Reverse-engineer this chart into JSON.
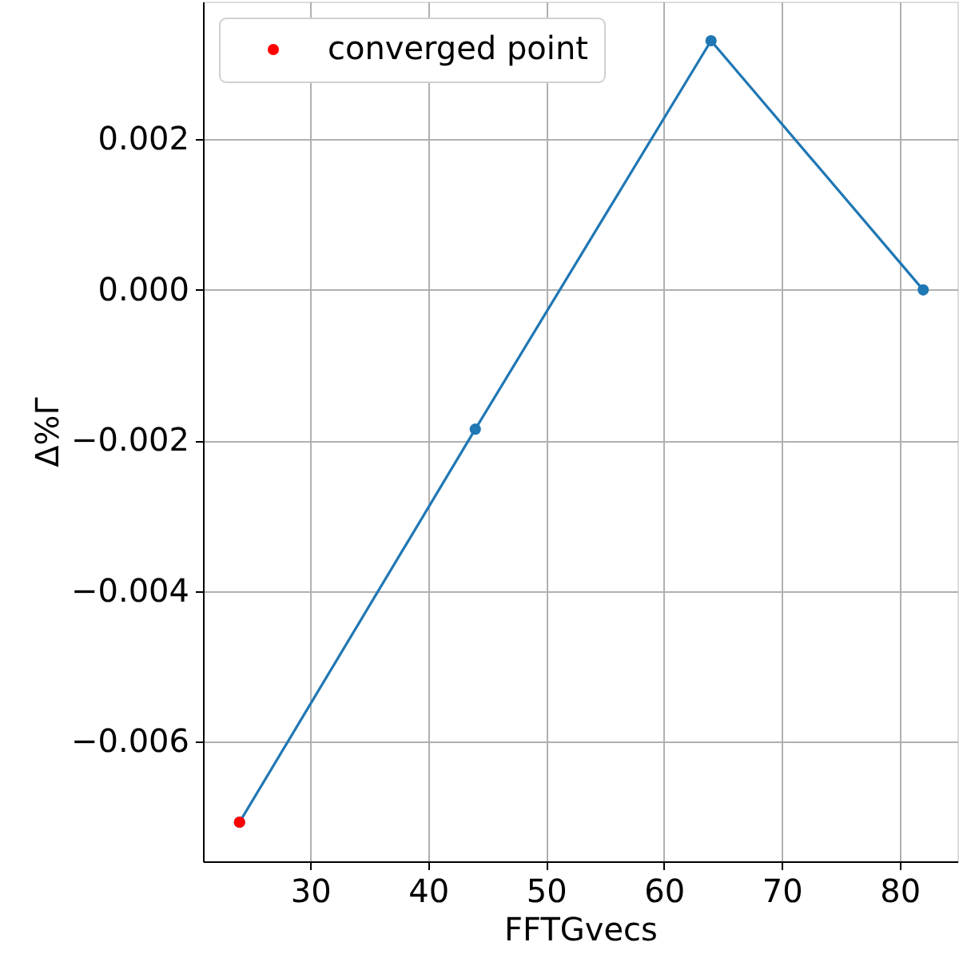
{
  "chart_data": {
    "type": "line",
    "xlabel": "FFTGvecs",
    "ylabel": "Δ%Γ",
    "series": [
      {
        "color": "#1f77b4",
        "marker": "circle",
        "x": [
          24,
          44,
          64,
          82
        ],
        "values": [
          -0.00707,
          -0.00185,
          0.00331,
          0.0
        ]
      },
      {
        "type": "scatter",
        "name": "converged point",
        "color": "#ff0000",
        "marker": "circle",
        "x": [
          24
        ],
        "values": [
          -0.00707
        ]
      }
    ],
    "xlim": [
      20.9,
      84.9
    ],
    "xticks": [
      30,
      40,
      50,
      60,
      70,
      80
    ],
    "ylim": [
      -0.00759,
      0.00383
    ],
    "yticks": [
      {
        "value": -0.006,
        "label": "−0.006"
      },
      {
        "value": -0.004,
        "label": "−0.004"
      },
      {
        "value": -0.002,
        "label": "−0.002"
      },
      {
        "value": 0.0,
        "label": "0.000"
      },
      {
        "value": 0.002,
        "label": "0.002"
      }
    ],
    "grid": true,
    "legend": "top left"
  }
}
